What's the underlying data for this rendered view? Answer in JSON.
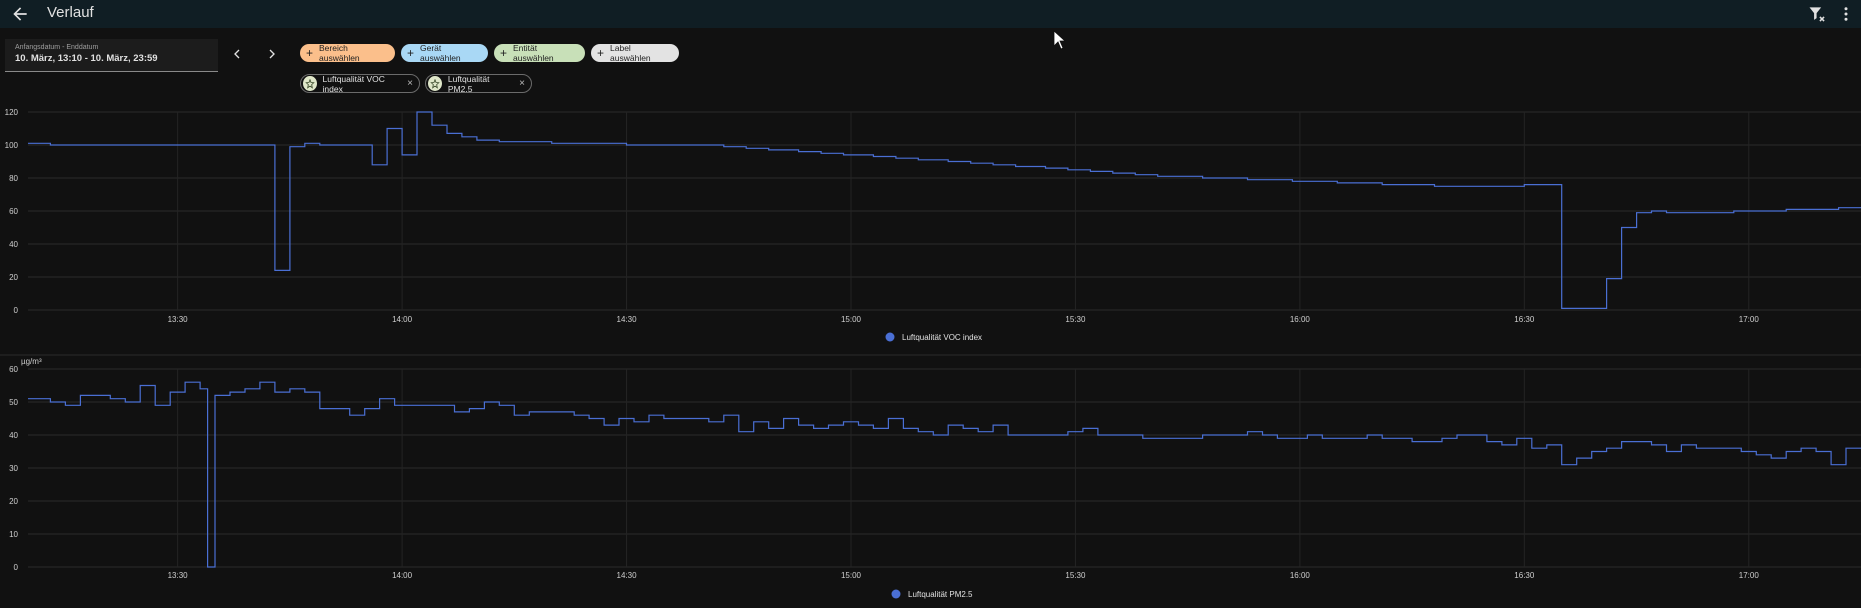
{
  "header": {
    "title": "Verlauf",
    "back_icon": "arrow-left-icon",
    "filter_clear_icon": "filter-remove-icon",
    "more_icon": "dots-vertical-icon"
  },
  "date_picker": {
    "label": "Anfangsdatum - Enddatum",
    "value": "10. März, 13:10 - 10. März, 23:59"
  },
  "target_chips": [
    {
      "label": "Bereich auswählen",
      "color": "#fbbf8b"
    },
    {
      "label": "Gerät auswählen",
      "color": "#a9d8f5"
    },
    {
      "label": "Entität auswählen",
      "color": "#c8e0b8"
    },
    {
      "label": "Label auswählen",
      "color": "#e3e3e3"
    }
  ],
  "selected_entities": [
    {
      "label": "Luftqualität VOC index",
      "remove": "×"
    },
    {
      "label": "Luftqualität PM2.5",
      "remove": "×"
    }
  ],
  "x_ticks": [
    "13:30",
    "14:00",
    "14:30",
    "15:00",
    "15:30",
    "16:00",
    "16:30",
    "17:00"
  ],
  "chart_data": [
    {
      "type": "line",
      "step": true,
      "series": [
        {
          "name": "Luftqualität VOC index",
          "color": "#4a6fd4"
        }
      ],
      "ylim": [
        0,
        120
      ],
      "y_ticks": [
        "0",
        "20",
        "40",
        "60",
        "80",
        "100",
        "120"
      ],
      "ylabel": "",
      "x_range_minutes": [
        790,
        1035
      ],
      "points": [
        [
          790,
          101
        ],
        [
          793,
          101
        ],
        [
          793,
          100
        ],
        [
          823,
          100
        ],
        [
          823,
          24
        ],
        [
          825,
          24
        ],
        [
          825,
          99
        ],
        [
          827,
          99
        ],
        [
          827,
          101
        ],
        [
          829,
          101
        ],
        [
          829,
          100
        ],
        [
          836,
          100
        ],
        [
          836,
          88
        ],
        [
          838,
          88
        ],
        [
          838,
          110
        ],
        [
          840,
          110
        ],
        [
          840,
          94
        ],
        [
          842,
          94
        ],
        [
          842,
          120
        ],
        [
          844,
          120
        ],
        [
          844,
          112
        ],
        [
          846,
          112
        ],
        [
          846,
          107
        ],
        [
          848,
          107
        ],
        [
          848,
          105
        ],
        [
          850,
          105
        ],
        [
          850,
          103
        ],
        [
          853,
          103
        ],
        [
          853,
          102
        ],
        [
          860,
          102
        ],
        [
          860,
          101
        ],
        [
          870,
          101
        ],
        [
          870,
          100
        ],
        [
          883,
          100
        ],
        [
          883,
          99
        ],
        [
          886,
          99
        ],
        [
          886,
          98
        ],
        [
          889,
          98
        ],
        [
          889,
          97
        ],
        [
          893,
          97
        ],
        [
          893,
          96
        ],
        [
          896,
          96
        ],
        [
          896,
          95
        ],
        [
          899,
          95
        ],
        [
          899,
          94
        ],
        [
          903,
          94
        ],
        [
          903,
          93
        ],
        [
          906,
          93
        ],
        [
          906,
          92
        ],
        [
          909,
          92
        ],
        [
          909,
          91
        ],
        [
          913,
          91
        ],
        [
          913,
          90
        ],
        [
          916,
          90
        ],
        [
          916,
          89
        ],
        [
          919,
          89
        ],
        [
          919,
          88
        ],
        [
          922,
          88
        ],
        [
          922,
          87
        ],
        [
          926,
          87
        ],
        [
          926,
          86
        ],
        [
          929,
          86
        ],
        [
          929,
          85
        ],
        [
          932,
          85
        ],
        [
          932,
          84
        ],
        [
          935,
          84
        ],
        [
          935,
          83
        ],
        [
          938,
          83
        ],
        [
          938,
          82
        ],
        [
          941,
          82
        ],
        [
          941,
          81
        ],
        [
          947,
          81
        ],
        [
          947,
          80
        ],
        [
          953,
          80
        ],
        [
          953,
          79
        ],
        [
          959,
          79
        ],
        [
          959,
          78
        ],
        [
          965,
          78
        ],
        [
          965,
          77
        ],
        [
          971,
          77
        ],
        [
          971,
          76
        ],
        [
          978,
          76
        ],
        [
          978,
          75
        ],
        [
          990,
          75
        ],
        [
          990,
          76
        ],
        [
          995,
          76
        ],
        [
          995,
          1
        ],
        [
          1001,
          1
        ],
        [
          1001,
          19
        ],
        [
          1003,
          19
        ],
        [
          1003,
          50
        ],
        [
          1005,
          50
        ],
        [
          1005,
          59
        ],
        [
          1007,
          59
        ],
        [
          1007,
          60
        ],
        [
          1009,
          60
        ],
        [
          1009,
          59
        ],
        [
          1018,
          59
        ],
        [
          1018,
          60
        ],
        [
          1025,
          60
        ],
        [
          1025,
          61
        ],
        [
          1032,
          61
        ],
        [
          1032,
          62
        ],
        [
          1035,
          62
        ]
      ]
    },
    {
      "type": "line",
      "step": true,
      "series": [
        {
          "name": "Luftqualität PM2.5",
          "color": "#4a6fd4"
        }
      ],
      "ylim": [
        0,
        60
      ],
      "y_ticks": [
        "0",
        "10",
        "20",
        "30",
        "40",
        "50",
        "60"
      ],
      "ylabel": "µg/m³",
      "x_range_minutes": [
        790,
        1035
      ],
      "points": [
        [
          790,
          51
        ],
        [
          793,
          51
        ],
        [
          793,
          50
        ],
        [
          795,
          50
        ],
        [
          795,
          49
        ],
        [
          797,
          49
        ],
        [
          797,
          52
        ],
        [
          801,
          52
        ],
        [
          801,
          51
        ],
        [
          803,
          51
        ],
        [
          803,
          50
        ],
        [
          805,
          50
        ],
        [
          805,
          55
        ],
        [
          807,
          55
        ],
        [
          807,
          49
        ],
        [
          809,
          49
        ],
        [
          809,
          53
        ],
        [
          811,
          53
        ],
        [
          811,
          56
        ],
        [
          813,
          56
        ],
        [
          813,
          54
        ],
        [
          814,
          54
        ],
        [
          814,
          0
        ],
        [
          815,
          0
        ],
        [
          815,
          52
        ],
        [
          817,
          52
        ],
        [
          817,
          53
        ],
        [
          819,
          53
        ],
        [
          819,
          54
        ],
        [
          821,
          54
        ],
        [
          821,
          56
        ],
        [
          823,
          56
        ],
        [
          823,
          53
        ],
        [
          825,
          53
        ],
        [
          825,
          54
        ],
        [
          827,
          54
        ],
        [
          827,
          53
        ],
        [
          829,
          53
        ],
        [
          829,
          48
        ],
        [
          833,
          48
        ],
        [
          833,
          46
        ],
        [
          835,
          46
        ],
        [
          835,
          48
        ],
        [
          837,
          48
        ],
        [
          837,
          51
        ],
        [
          839,
          51
        ],
        [
          839,
          49
        ],
        [
          847,
          49
        ],
        [
          847,
          47
        ],
        [
          849,
          47
        ],
        [
          849,
          48
        ],
        [
          851,
          48
        ],
        [
          851,
          50
        ],
        [
          853,
          50
        ],
        [
          853,
          49
        ],
        [
          855,
          49
        ],
        [
          855,
          46
        ],
        [
          857,
          46
        ],
        [
          857,
          47
        ],
        [
          863,
          47
        ],
        [
          863,
          46
        ],
        [
          865,
          46
        ],
        [
          865,
          45
        ],
        [
          867,
          45
        ],
        [
          867,
          43
        ],
        [
          869,
          43
        ],
        [
          869,
          45
        ],
        [
          871,
          45
        ],
        [
          871,
          44
        ],
        [
          873,
          44
        ],
        [
          873,
          46
        ],
        [
          875,
          46
        ],
        [
          875,
          45
        ],
        [
          881,
          45
        ],
        [
          881,
          44
        ],
        [
          883,
          44
        ],
        [
          883,
          46
        ],
        [
          885,
          46
        ],
        [
          885,
          41
        ],
        [
          887,
          41
        ],
        [
          887,
          44
        ],
        [
          889,
          44
        ],
        [
          889,
          42
        ],
        [
          891,
          42
        ],
        [
          891,
          45
        ],
        [
          893,
          45
        ],
        [
          893,
          43
        ],
        [
          895,
          43
        ],
        [
          895,
          42
        ],
        [
          897,
          42
        ],
        [
          897,
          43
        ],
        [
          899,
          43
        ],
        [
          899,
          44
        ],
        [
          901,
          44
        ],
        [
          901,
          43
        ],
        [
          903,
          43
        ],
        [
          903,
          42
        ],
        [
          905,
          42
        ],
        [
          905,
          45
        ],
        [
          907,
          45
        ],
        [
          907,
          42
        ],
        [
          909,
          42
        ],
        [
          909,
          41
        ],
        [
          911,
          41
        ],
        [
          911,
          40
        ],
        [
          913,
          40
        ],
        [
          913,
          43
        ],
        [
          915,
          43
        ],
        [
          915,
          42
        ],
        [
          917,
          42
        ],
        [
          917,
          41
        ],
        [
          919,
          41
        ],
        [
          919,
          43
        ],
        [
          921,
          43
        ],
        [
          921,
          40
        ],
        [
          929,
          40
        ],
        [
          929,
          41
        ],
        [
          931,
          41
        ],
        [
          931,
          42
        ],
        [
          933,
          42
        ],
        [
          933,
          40
        ],
        [
          939,
          40
        ],
        [
          939,
          39
        ],
        [
          947,
          39
        ],
        [
          947,
          40
        ],
        [
          953,
          40
        ],
        [
          953,
          41
        ],
        [
          955,
          41
        ],
        [
          955,
          40
        ],
        [
          957,
          40
        ],
        [
          957,
          39
        ],
        [
          961,
          39
        ],
        [
          961,
          40
        ],
        [
          963,
          40
        ],
        [
          963,
          39
        ],
        [
          969,
          39
        ],
        [
          969,
          40
        ],
        [
          971,
          40
        ],
        [
          971,
          39
        ],
        [
          975,
          39
        ],
        [
          975,
          38
        ],
        [
          979,
          38
        ],
        [
          979,
          39
        ],
        [
          981,
          39
        ],
        [
          981,
          40
        ],
        [
          985,
          40
        ],
        [
          985,
          38
        ],
        [
          987,
          38
        ],
        [
          987,
          37
        ],
        [
          989,
          37
        ],
        [
          989,
          39
        ],
        [
          991,
          39
        ],
        [
          991,
          36
        ],
        [
          993,
          36
        ],
        [
          993,
          37
        ],
        [
          995,
          37
        ],
        [
          995,
          31
        ],
        [
          997,
          31
        ],
        [
          997,
          33
        ],
        [
          999,
          33
        ],
        [
          999,
          35
        ],
        [
          1001,
          35
        ],
        [
          1001,
          36
        ],
        [
          1003,
          36
        ],
        [
          1003,
          38
        ],
        [
          1007,
          38
        ],
        [
          1007,
          37
        ],
        [
          1009,
          37
        ],
        [
          1009,
          35
        ],
        [
          1011,
          35
        ],
        [
          1011,
          37
        ],
        [
          1013,
          37
        ],
        [
          1013,
          36
        ],
        [
          1019,
          36
        ],
        [
          1019,
          35
        ],
        [
          1021,
          35
        ],
        [
          1021,
          34
        ],
        [
          1023,
          34
        ],
        [
          1023,
          33
        ],
        [
          1025,
          33
        ],
        [
          1025,
          35
        ],
        [
          1027,
          35
        ],
        [
          1027,
          36
        ],
        [
          1029,
          36
        ],
        [
          1029,
          35
        ],
        [
          1031,
          35
        ],
        [
          1031,
          31
        ],
        [
          1033,
          31
        ],
        [
          1033,
          36
        ],
        [
          1035,
          36
        ]
      ]
    }
  ]
}
